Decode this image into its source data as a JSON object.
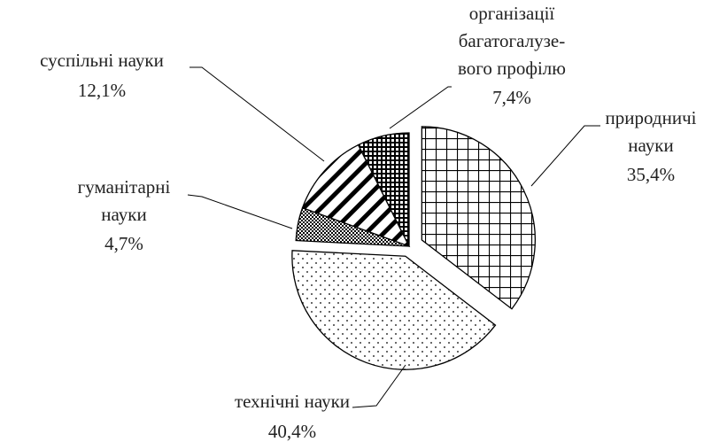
{
  "chart_data": {
    "type": "pie",
    "categories": [
      "природничі\nнауки",
      "технічні науки",
      "гуманітарні\nнауки",
      "суспільні науки",
      "організації\nбагатогалузе-\nвого профілю"
    ],
    "values": [
      35.4,
      40.4,
      4.7,
      12.1,
      7.4
    ],
    "value_labels": [
      "35,4%",
      "40,4%",
      "4,7%",
      "12,1%",
      "7,4%"
    ],
    "color": "#000000"
  }
}
